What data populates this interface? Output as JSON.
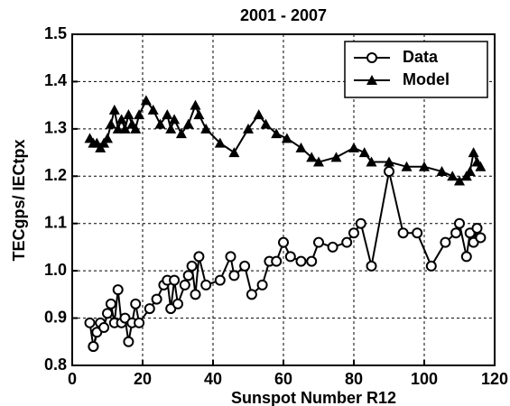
{
  "chart_data": {
    "type": "line",
    "title": "2001 - 2007",
    "x_label": "Sunspot Number R12",
    "y_label": "TECgps/ IECtpx",
    "xlim": [
      0,
      120
    ],
    "xticks": [
      0,
      20,
      40,
      60,
      80,
      100,
      120
    ],
    "ylim": [
      0.8,
      1.5
    ],
    "yticks": [
      0.8,
      0.9,
      {
        "value": 1,
        "label": "1.0"
      },
      1.1,
      1.2,
      1.3,
      1.4,
      1.5
    ],
    "grid": true,
    "legend": "upper right",
    "series": [
      {
        "name": "Data",
        "color": "#000000",
        "marker": "circle",
        "x": [
          5,
          6,
          7,
          6,
          8,
          9,
          10,
          11,
          12,
          13,
          14,
          15,
          16,
          17,
          18,
          19,
          22,
          24,
          26,
          27,
          28,
          29,
          30,
          32,
          33,
          34,
          35,
          36,
          38,
          42,
          45,
          46,
          49,
          51,
          54,
          56,
          58,
          60,
          62,
          65,
          68,
          70,
          74,
          78,
          80,
          82,
          85,
          90,
          94,
          98,
          102,
          106,
          109,
          110,
          112,
          113,
          114,
          115,
          116
        ],
        "values": [
          0.89,
          0.84,
          0.87,
          0.84,
          0.89,
          0.88,
          0.91,
          0.93,
          0.89,
          0.96,
          0.89,
          0.9,
          0.85,
          0.89,
          0.93,
          0.89,
          0.92,
          0.94,
          0.97,
          0.98,
          0.92,
          0.98,
          0.93,
          0.97,
          0.99,
          1.01,
          0.95,
          1.03,
          0.97,
          0.98,
          1.03,
          0.99,
          1.01,
          0.95,
          0.97,
          1.02,
          1.02,
          1.06,
          1.03,
          1.02,
          1.02,
          1.06,
          1.05,
          1.06,
          1.08,
          1.1,
          1.01,
          1.21,
          1.08,
          1.08,
          1.01,
          1.06,
          1.08,
          1.1,
          1.03,
          1.08,
          1.06,
          1.09,
          1.07
        ]
      },
      {
        "name": "Model",
        "color": "#000000",
        "marker": "triangle",
        "x": [
          5,
          6,
          7,
          8,
          9,
          10,
          11,
          12,
          13,
          14,
          15,
          16,
          17,
          18,
          19,
          21,
          23,
          25,
          27,
          28,
          29,
          31,
          33,
          35,
          36,
          38,
          42,
          46,
          50,
          53,
          55,
          58,
          61,
          65,
          68,
          70,
          75,
          80,
          83,
          85,
          90,
          95,
          100,
          105,
          108,
          110,
          112,
          113,
          114,
          115,
          116
        ],
        "values": [
          1.28,
          1.27,
          1.27,
          1.26,
          1.27,
          1.28,
          1.31,
          1.34,
          1.3,
          1.32,
          1.3,
          1.33,
          1.31,
          1.3,
          1.33,
          1.36,
          1.34,
          1.31,
          1.33,
          1.3,
          1.32,
          1.29,
          1.31,
          1.35,
          1.33,
          1.3,
          1.27,
          1.25,
          1.3,
          1.33,
          1.31,
          1.29,
          1.28,
          1.26,
          1.24,
          1.23,
          1.24,
          1.26,
          1.25,
          1.23,
          1.23,
          1.22,
          1.22,
          1.21,
          1.2,
          1.19,
          1.2,
          1.21,
          1.25,
          1.23,
          1.22
        ]
      }
    ]
  }
}
